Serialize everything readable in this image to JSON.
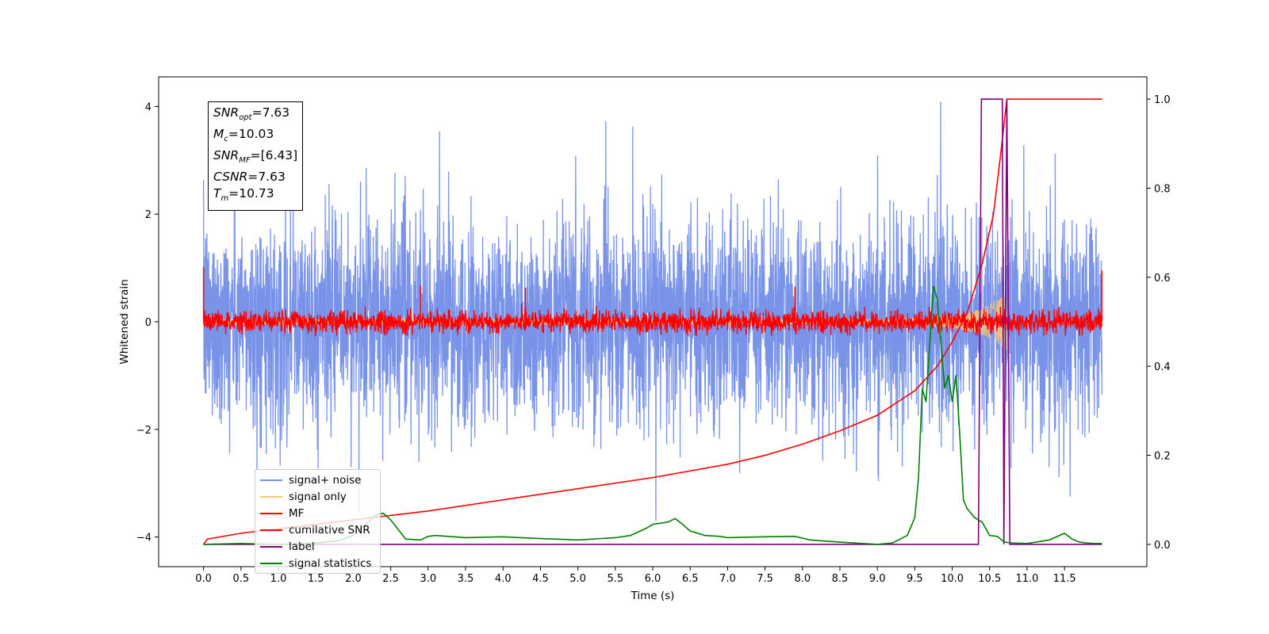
{
  "chart_data": {
    "type": "line",
    "xlabel": "Time (s)",
    "ylabel": "Whitened strain",
    "xlim": [
      -0.6,
      12.6
    ],
    "ylim": [
      -4.55,
      4.55
    ],
    "y2lim": [
      -0.05,
      1.05
    ],
    "xticks": [
      0.0,
      0.5,
      1.0,
      1.5,
      2.0,
      2.5,
      3.0,
      3.5,
      4.0,
      4.5,
      5.0,
      5.5,
      6.0,
      6.5,
      7.0,
      7.5,
      8.0,
      8.5,
      9.0,
      9.5,
      10.0,
      10.5,
      11.0,
      11.5
    ],
    "xtick_labels": [
      "0.0",
      "0.5",
      "1.0",
      "1.5",
      "2.0",
      "2.5",
      "3.0",
      "3.5",
      "4.0",
      "4.5",
      "5.0",
      "5.5",
      "6.0",
      "6.5",
      "7.0",
      "7.5",
      "8.0",
      "8.5",
      "9.0",
      "9.5",
      "10.0",
      "10.5",
      "11.0",
      "11.5"
    ],
    "yticks": [
      4,
      2,
      0,
      -2,
      -4
    ],
    "ytick_labels": [
      "4",
      "2",
      "0",
      "−2",
      "−4"
    ],
    "y2ticks": [
      1.0,
      0.8,
      0.6,
      0.4,
      0.2,
      0.0
    ],
    "y2tick_labels": [
      "1.0",
      "0.8",
      "0.6",
      "0.4",
      "0.2",
      "0.0"
    ],
    "grid": false,
    "legend_position": "lower-left",
    "annotations": {
      "snr_opt": {
        "label": "SNR",
        "sub": "opt",
        "value": "=7.63"
      },
      "mc": {
        "label": "M",
        "sub": "c",
        "value": "=10.03"
      },
      "snr_mf": {
        "label": "SNR",
        "sub": "MF",
        "value": "=[6.43]"
      },
      "csnr": {
        "label": "CSNR",
        "sub": "",
        "value": "=7.63"
      },
      "tm": {
        "label": "T",
        "sub": "m",
        "value": "=10.73"
      }
    },
    "series": [
      {
        "name": "signal+ noise",
        "color": "#7893e8",
        "axis": "left",
        "kind": "noise",
        "x_range": [
          0.0,
          12.0
        ],
        "amplitude_std": 0.95,
        "envelope_x": [
          0.0,
          6.0,
          12.0
        ],
        "envelope_max": [
          2.8,
          2.7,
          2.6
        ]
      },
      {
        "name": "signal only",
        "color": "#f4c97a",
        "axis": "left",
        "kind": "chirp",
        "x_range": [
          0.0,
          10.73
        ],
        "envelope_x": [
          9.0,
          9.5,
          10.0,
          10.3,
          10.5,
          10.65,
          10.73
        ],
        "envelope": [
          0.05,
          0.08,
          0.12,
          0.2,
          0.32,
          0.45,
          0.55
        ]
      },
      {
        "name": "MF",
        "color": "#ff0000",
        "axis": "left",
        "kind": "noise",
        "x_range": [
          0.0,
          12.0
        ],
        "amplitude_std": 0.1,
        "peaks_x": [
          0.0,
          2.9,
          4.3,
          7.9,
          12.0
        ],
        "peaks_y": [
          1.02,
          0.67,
          0.63,
          0.65,
          0.95
        ]
      },
      {
        "name": "cumilative SNR",
        "color": "#ff0000",
        "axis": "right",
        "x": [
          0.0,
          0.05,
          0.5,
          1.0,
          2.0,
          3.0,
          4.0,
          5.0,
          6.0,
          7.0,
          7.5,
          8.0,
          8.5,
          9.0,
          9.5,
          9.8,
          10.0,
          10.2,
          10.4,
          10.55,
          10.65,
          10.73,
          10.8,
          12.0
        ],
        "y": [
          0.0,
          0.012,
          0.025,
          0.035,
          0.055,
          0.075,
          0.1,
          0.125,
          0.15,
          0.18,
          0.2,
          0.225,
          0.255,
          0.29,
          0.345,
          0.4,
          0.455,
          0.52,
          0.63,
          0.74,
          0.88,
          1.0,
          1.0,
          1.0
        ]
      },
      {
        "name": "label",
        "color": "#800080",
        "axis": "right",
        "x": [
          0.0,
          10.35,
          10.39,
          10.67,
          10.69,
          10.73,
          10.77,
          12.0
        ],
        "y": [
          0.0,
          0.0,
          1.0,
          1.0,
          0.0,
          1.0,
          0.0,
          0.0
        ]
      },
      {
        "name": "signal statistics",
        "color": "#008000",
        "axis": "right",
        "x": [
          0.0,
          0.5,
          1.0,
          1.5,
          1.8,
          2.0,
          2.1,
          2.2,
          2.3,
          2.4,
          2.5,
          2.7,
          2.9,
          3.0,
          3.1,
          3.5,
          4.0,
          4.5,
          5.0,
          5.5,
          5.7,
          5.9,
          6.0,
          6.2,
          6.3,
          6.4,
          6.5,
          6.7,
          6.9,
          7.0,
          7.5,
          7.9,
          8.1,
          8.5,
          9.0,
          9.2,
          9.4,
          9.5,
          9.55,
          9.6,
          9.65,
          9.7,
          9.75,
          9.8,
          9.85,
          9.9,
          9.95,
          10.0,
          10.05,
          10.1,
          10.15,
          10.2,
          10.3,
          10.4,
          10.5,
          10.6,
          10.7,
          10.8,
          11.0,
          11.3,
          11.5,
          11.6,
          11.7,
          11.8,
          11.9,
          12.0
        ],
        "y": [
          0.0,
          0.002,
          0.0,
          0.003,
          0.008,
          0.02,
          0.035,
          0.05,
          0.065,
          0.07,
          0.055,
          0.012,
          0.01,
          0.018,
          0.02,
          0.015,
          0.017,
          0.013,
          0.01,
          0.015,
          0.02,
          0.035,
          0.045,
          0.05,
          0.058,
          0.045,
          0.03,
          0.02,
          0.018,
          0.015,
          0.017,
          0.018,
          0.01,
          0.005,
          0.0,
          0.003,
          0.02,
          0.06,
          0.15,
          0.35,
          0.32,
          0.45,
          0.58,
          0.55,
          0.45,
          0.35,
          0.38,
          0.32,
          0.38,
          0.25,
          0.1,
          0.08,
          0.06,
          0.05,
          0.02,
          0.018,
          0.005,
          0.003,
          0.002,
          0.01,
          0.025,
          0.012,
          0.005,
          0.003,
          0.002,
          0.002
        ]
      }
    ]
  }
}
